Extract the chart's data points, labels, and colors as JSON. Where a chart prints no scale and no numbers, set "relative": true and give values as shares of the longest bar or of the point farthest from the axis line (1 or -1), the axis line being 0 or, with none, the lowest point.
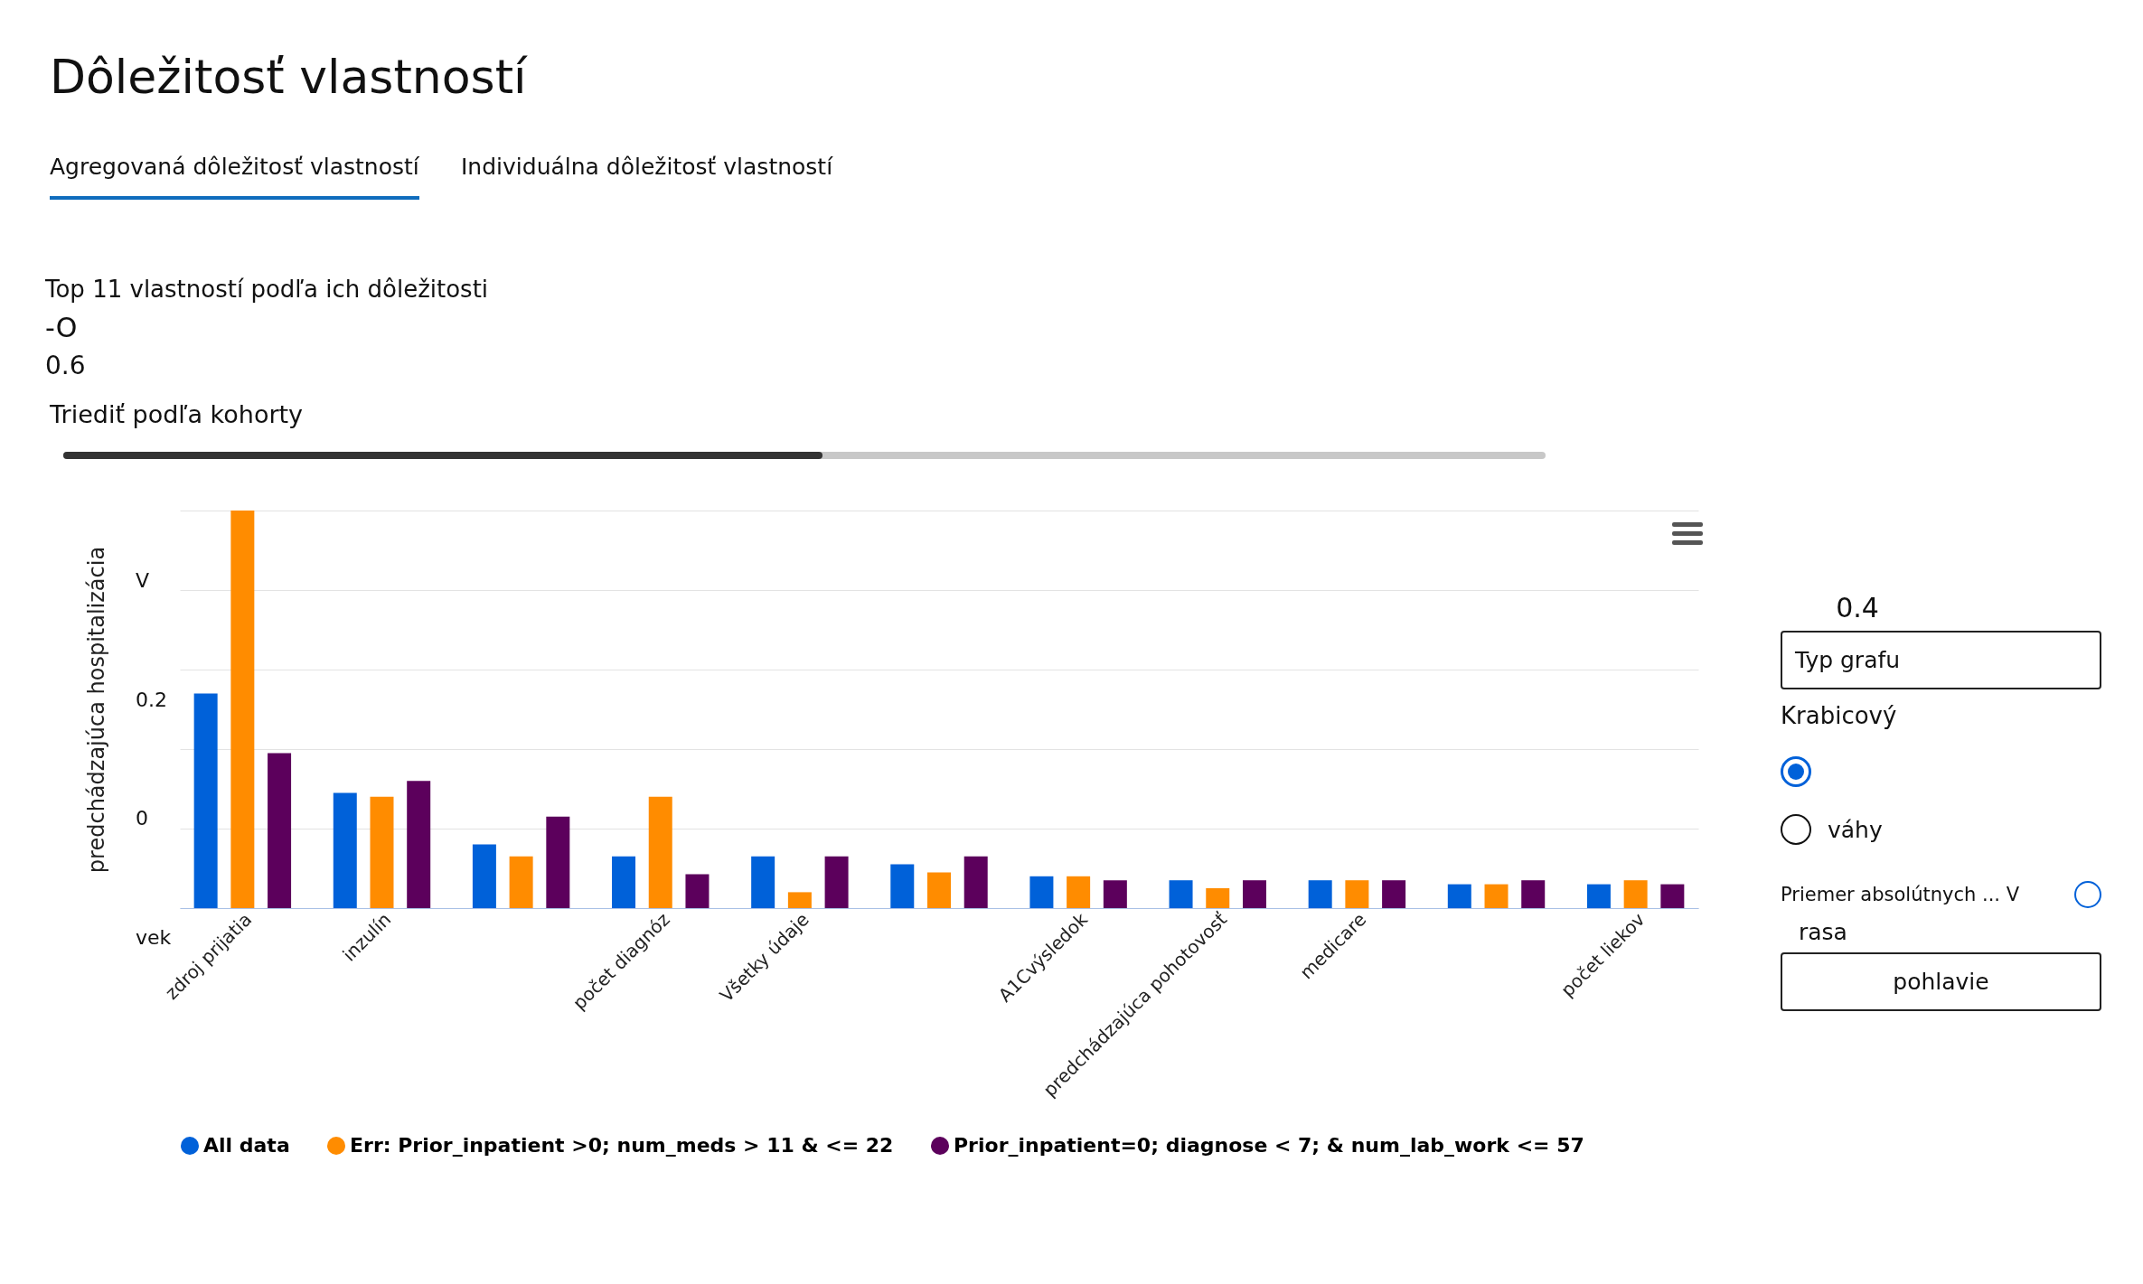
{
  "chart_data": {
    "type": "bar",
    "title": "Dôležitosť vlastností",
    "subtitle": "Top 11 vlastností podľa ich dôležitosti",
    "ylabel": "predchádzajúca hospitalizácia",
    "relative": true,
    "grid": "y",
    "legend": "bottom",
    "annotations": [
      "Agregovaná dôležitosť vlastností",
      "Individuálna dôležitosť vlastností",
      "-O",
      "0.6",
      "Triediť podľa kohorty",
      "0.4",
      "Typ grafu",
      "Krabicový",
      "váhy",
      "Priemer absolútnych ... V",
      "rasa",
      "pohlavie",
      "V",
      "0.2",
      "0",
      "vek"
    ],
    "categories": [
      "zdroj prijatia",
      "inzulín",
      null,
      "počet diagnóz",
      "Všetky údaje",
      null,
      "A1Cvýsledok",
      "predchádzajúca pohotovosť",
      "medicare",
      null,
      "počet liekov"
    ],
    "series": [
      {
        "name": "All data",
        "color": "#0061d9",
        "values": [
          0.54,
          0.29,
          0.16,
          0.13,
          0.13,
          0.11,
          0.08,
          0.07,
          0.07,
          0.06,
          0.06
        ]
      },
      {
        "name": "Err: Prior_inpatient >0; num_meds > 11 & <= 22",
        "color": "#ff8c00",
        "values": [
          1,
          0.28,
          0.13,
          0.28,
          0.04,
          0.09,
          0.08,
          0.05,
          0.07,
          0.06,
          0.07
        ]
      },
      {
        "name": "Prior_inpatient=0; diagnose < 7; & num_lab_work <= 57",
        "color": "#5c005c",
        "values": [
          0.39,
          0.32,
          0.23,
          0.085,
          0.13,
          0.13,
          0.07,
          0.07,
          0.07,
          0.07,
          0.06
        ]
      }
    ]
  }
}
